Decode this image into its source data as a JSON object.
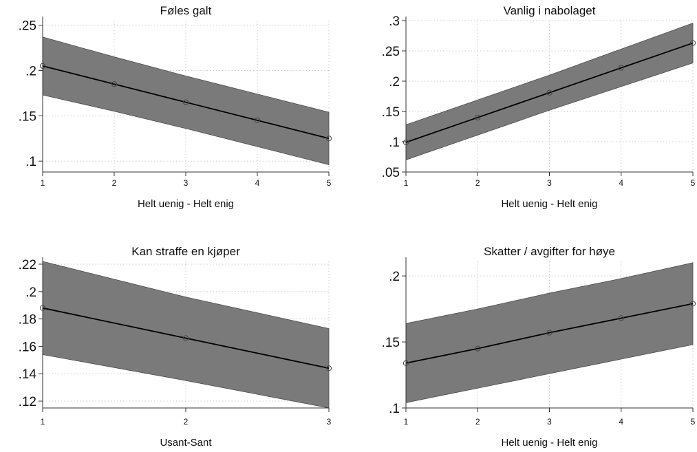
{
  "chart_data": [
    {
      "type": "line",
      "title": "Føles galt",
      "xlabel": "Helt uenig - Helt enig",
      "ylabel": "",
      "x": [
        1,
        2,
        3,
        4,
        5
      ],
      "x_ticks": [
        "1",
        "2",
        "3",
        "4",
        "5"
      ],
      "xlim": [
        1,
        5
      ],
      "ylim": [
        0.088,
        0.255
      ],
      "y_ticks": [
        0.1,
        0.15,
        0.2,
        0.25
      ],
      "y_tick_labels": [
        ".1",
        ".15",
        ".2",
        ".25"
      ],
      "grid": true,
      "series": [
        {
          "values": [
            0.205,
            0.185,
            0.165,
            0.145,
            0.125
          ],
          "ci_lower": [
            0.173,
            0.155,
            0.136,
            0.116,
            0.096
          ],
          "ci_upper": [
            0.237,
            0.215,
            0.194,
            0.174,
            0.154
          ]
        }
      ]
    },
    {
      "type": "line",
      "title": "Vanlig i nabolaget",
      "xlabel": "Helt uenig - Helt enig",
      "ylabel": "",
      "x": [
        1,
        2,
        3,
        4,
        5
      ],
      "x_ticks": [
        "1",
        "2",
        "3",
        "4",
        "5"
      ],
      "xlim": [
        1,
        5
      ],
      "ylim": [
        0.05,
        0.3
      ],
      "y_ticks": [
        0.05,
        0.1,
        0.15,
        0.2,
        0.25,
        0.3
      ],
      "y_tick_labels": [
        ".05",
        ".1",
        ".15",
        ".2",
        ".25",
        ".3"
      ],
      "grid": true,
      "series": [
        {
          "values": [
            0.099,
            0.14,
            0.181,
            0.222,
            0.263
          ],
          "ci_lower": [
            0.07,
            0.111,
            0.152,
            0.191,
            0.23
          ],
          "ci_upper": [
            0.128,
            0.169,
            0.21,
            0.253,
            0.296
          ]
        }
      ]
    },
    {
      "type": "line",
      "title": "Kan straffe en kjøper",
      "xlabel": "Usant-Sant",
      "ylabel": "",
      "x": [
        1,
        2,
        3
      ],
      "x_ticks": [
        "1",
        "2",
        "3"
      ],
      "xlim": [
        1,
        3
      ],
      "ylim": [
        0.115,
        0.222
      ],
      "y_ticks": [
        0.12,
        0.14,
        0.16,
        0.18,
        0.2,
        0.22
      ],
      "y_tick_labels": [
        ".12",
        ".14",
        ".16",
        ".18",
        ".2",
        ".22"
      ],
      "grid": true,
      "series": [
        {
          "values": [
            0.188,
            0.166,
            0.144
          ],
          "ci_lower": [
            0.154,
            0.135,
            0.115
          ],
          "ci_upper": [
            0.222,
            0.196,
            0.173
          ]
        }
      ]
    },
    {
      "type": "line",
      "title": "Skatter / avgifter for høye",
      "xlabel": "Helt uenig - Helt enig",
      "ylabel": "",
      "x": [
        1,
        2,
        3,
        4,
        5
      ],
      "x_ticks": [
        "1",
        "2",
        "3",
        "4",
        "5"
      ],
      "xlim": [
        1,
        5
      ],
      "ylim": [
        0.1,
        0.211
      ],
      "y_ticks": [
        0.1,
        0.15,
        0.2
      ],
      "y_tick_labels": [
        ".1",
        ".15",
        ".2"
      ],
      "grid": true,
      "series": [
        {
          "values": [
            0.134,
            0.145,
            0.157,
            0.168,
            0.179
          ],
          "ci_lower": [
            0.104,
            0.115,
            0.126,
            0.137,
            0.148
          ],
          "ci_upper": [
            0.164,
            0.175,
            0.187,
            0.198,
            0.21
          ]
        }
      ]
    }
  ],
  "colors": {
    "ci_band": "#7a7a7a",
    "ci_band_edge": "#4d4d4d",
    "line": "#000000",
    "marker": "#444444",
    "grid": "#c9c9c9",
    "axis": "#333333"
  }
}
